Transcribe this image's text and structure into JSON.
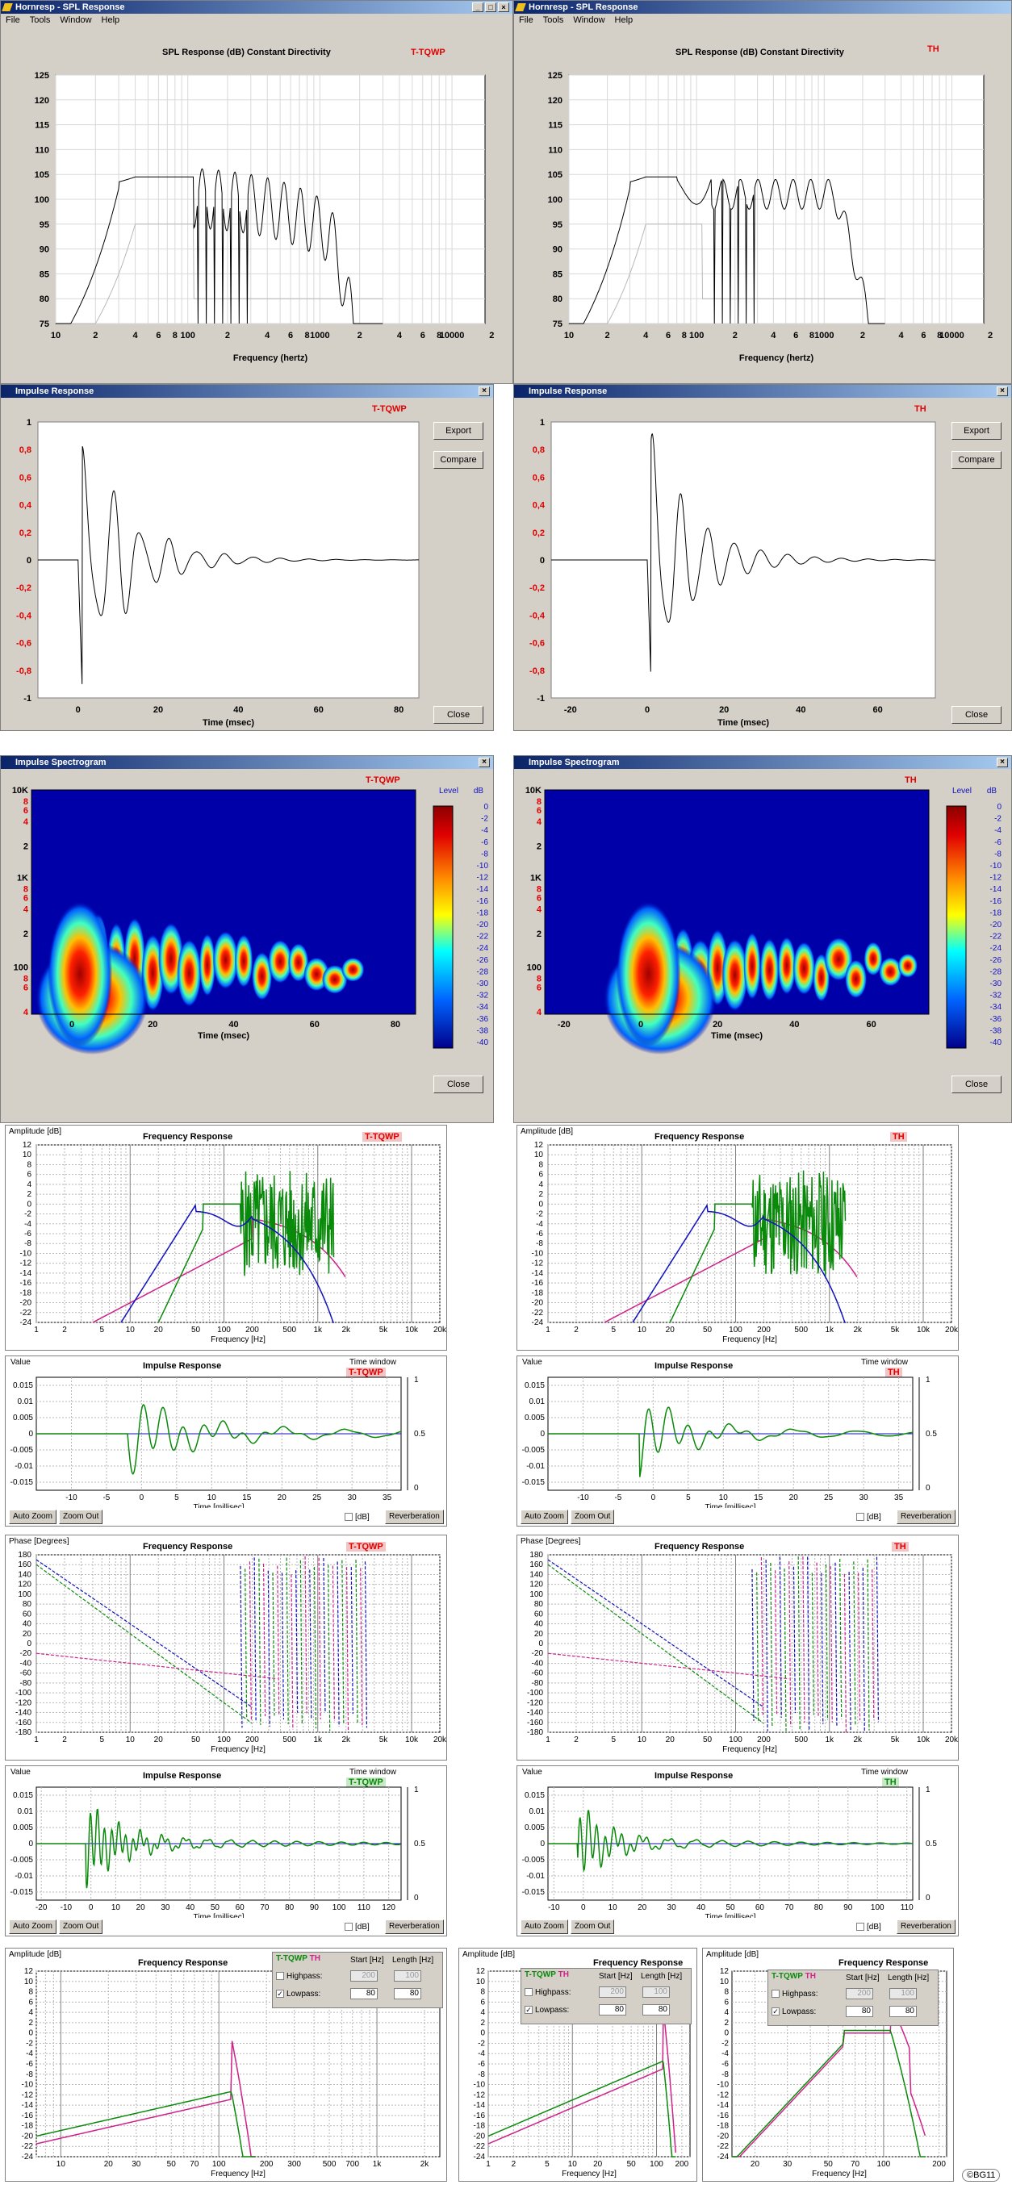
{
  "spl": [
    {
      "window_title": "Hornresp - SPL Response",
      "menu": [
        "File",
        "Tools",
        "Window",
        "Help"
      ],
      "title": "SPL Response (dB)   Constant Directivity",
      "tag": "T-TQWP",
      "yticks": [
        "125",
        "120",
        "115",
        "110",
        "105",
        "100",
        "95",
        "90",
        "85",
        "80",
        "75"
      ],
      "xticks": [
        "10",
        "2",
        "4",
        "6",
        "8",
        "100",
        "2",
        "4",
        "6",
        "8",
        "1000",
        "2",
        "4",
        "6",
        "8",
        "10000",
        "2"
      ],
      "xlabel": "Frequency (hertz)"
    },
    {
      "window_title": "Hornresp - SPL Response",
      "menu": [
        "File",
        "Tools",
        "Window",
        "Help"
      ],
      "title": "SPL Response (dB)   Constant Directivity",
      "tag": "TH",
      "yticks": [
        "125",
        "120",
        "115",
        "110",
        "105",
        "100",
        "95",
        "90",
        "85",
        "80",
        "75"
      ],
      "xticks": [
        "10",
        "2",
        "4",
        "6",
        "8",
        "100",
        "2",
        "4",
        "6",
        "8",
        "1000",
        "2",
        "4",
        "6",
        "8",
        "10000",
        "2"
      ],
      "xlabel": "Frequency (hertz)"
    }
  ],
  "impulse": [
    {
      "window_title": "Impulse Response",
      "tag": "T-TQWP",
      "yticks": [
        "1",
        "0,8",
        "0,6",
        "0,4",
        "0,2",
        "0",
        "-0,2",
        "-0,4",
        "-0,6",
        "-0,8",
        "-1"
      ],
      "xticks": [
        "0",
        "20",
        "40",
        "60",
        "80"
      ],
      "xlabel": "Time (msec)",
      "buttons": {
        "export": "Export",
        "compare": "Compare",
        "close": "Close"
      }
    },
    {
      "window_title": "Impulse Response",
      "tag": "TH",
      "yticks": [
        "1",
        "0,8",
        "0,6",
        "0,4",
        "0,2",
        "0",
        "-0,2",
        "-0,4",
        "-0,6",
        "-0,8",
        "-1"
      ],
      "xticks": [
        "-20",
        "0",
        "20",
        "40",
        "60"
      ],
      "xlabel": "Time (msec)",
      "buttons": {
        "export": "Export",
        "compare": "Compare",
        "close": "Close"
      }
    }
  ],
  "spectro": [
    {
      "window_title": "Impulse Spectrogram",
      "tag": "T-TQWP",
      "yticks": [
        "10K",
        "8",
        "6",
        "4",
        "2",
        "1K",
        "8",
        "6",
        "4",
        "2",
        "100",
        "8",
        "6",
        "4"
      ],
      "xticks": [
        "0",
        "20",
        "40",
        "60",
        "80"
      ],
      "xlabel": "Time (msec)",
      "level_label": "Level",
      "db_label": "dB",
      "scale": [
        "0",
        "-2",
        "-4",
        "-6",
        "-8",
        "-10",
        "-12",
        "-14",
        "-16",
        "-18",
        "-20",
        "-22",
        "-24",
        "-26",
        "-28",
        "-30",
        "-32",
        "-34",
        "-36",
        "-38",
        "-40"
      ],
      "close": "Close"
    },
    {
      "window_title": "Impulse Spectrogram",
      "tag": "TH",
      "yticks": [
        "10K",
        "8",
        "6",
        "4",
        "2",
        "1K",
        "8",
        "6",
        "4",
        "2",
        "100",
        "8",
        "6",
        "4"
      ],
      "xticks": [
        "-20",
        "0",
        "20",
        "40",
        "60"
      ],
      "xlabel": "Time (msec)",
      "level_label": "Level",
      "db_label": "dB",
      "scale": [
        "0",
        "-2",
        "-4",
        "-6",
        "-8",
        "-10",
        "-12",
        "-14",
        "-16",
        "-18",
        "-20",
        "-22",
        "-24",
        "-26",
        "-28",
        "-30",
        "-32",
        "-34",
        "-36",
        "-38",
        "-40"
      ],
      "close": "Close"
    }
  ],
  "fr": [
    {
      "ylabel": "Amplitude [dB]",
      "title": "Frequency Response",
      "tag": "T-TQWP",
      "yticks": [
        "12",
        "10",
        "8",
        "6",
        "4",
        "2",
        "0",
        "-2",
        "-4",
        "-6",
        "-8",
        "-10",
        "-12",
        "-14",
        "-16",
        "-18",
        "-20",
        "-22",
        "-24"
      ],
      "xticks": [
        "1",
        "2",
        "5",
        "10",
        "20",
        "50",
        "100",
        "200",
        "500",
        "1k",
        "2k",
        "5k",
        "10k",
        "20k"
      ],
      "xlabel": "Frequency [Hz]"
    },
    {
      "ylabel": "Amplitude [dB]",
      "title": "Frequency Response",
      "tag": "TH",
      "yticks": [
        "12",
        "10",
        "8",
        "6",
        "4",
        "2",
        "0",
        "-2",
        "-4",
        "-6",
        "-8",
        "-10",
        "-12",
        "-14",
        "-16",
        "-18",
        "-20",
        "-22",
        "-24"
      ],
      "xticks": [
        "1",
        "2",
        "5",
        "10",
        "20",
        "50",
        "100",
        "200",
        "500",
        "1k",
        "2k",
        "5k",
        "10k",
        "20k"
      ],
      "xlabel": "Frequency [Hz]"
    }
  ],
  "ir": [
    {
      "ylabel": "Value",
      "title": "Impulse Response",
      "tw": "Time window",
      "tag": "T-TQWP",
      "yticks": [
        "0.015",
        "0.01",
        "0.005",
        "0",
        "-0.005",
        "-0.01",
        "-0.015"
      ],
      "rticks": [
        "1",
        "0.5",
        "0"
      ],
      "xticks": [
        "-10",
        "-5",
        "0",
        "5",
        "10",
        "15",
        "20",
        "25",
        "30",
        "35"
      ],
      "xlabel": "Time [millisec]",
      "auto_zoom": "Auto Zoom",
      "zoom_out": "Zoom Out",
      "db": "[dB]",
      "reverb": "Reverberation"
    },
    {
      "ylabel": "Value",
      "title": "Impulse Response",
      "tw": "Time window",
      "tag": "TH",
      "yticks": [
        "0.015",
        "0.01",
        "0.005",
        "0",
        "-0.005",
        "-0.01",
        "-0.015"
      ],
      "rticks": [
        "1",
        "0.5",
        "0"
      ],
      "xticks": [
        "-10",
        "-5",
        "0",
        "5",
        "10",
        "15",
        "20",
        "25",
        "30",
        "35"
      ],
      "xlabel": "Time [millisec]",
      "auto_zoom": "Auto Zoom",
      "zoom_out": "Zoom Out",
      "db": "[dB]",
      "reverb": "Reverberation"
    }
  ],
  "ph": [
    {
      "ylabel": "Phase [Degrees]",
      "title": "Frequency Response",
      "tag": "T-TQWP",
      "yticks": [
        "180",
        "160",
        "140",
        "120",
        "100",
        "80",
        "60",
        "40",
        "20",
        "0",
        "-20",
        "-40",
        "-60",
        "-80",
        "-100",
        "-120",
        "-140",
        "-160",
        "-180"
      ],
      "xticks": [
        "1",
        "2",
        "5",
        "10",
        "20",
        "50",
        "100",
        "200",
        "500",
        "1k",
        "2k",
        "5k",
        "10k",
        "20k"
      ],
      "xlabel": "Frequency [Hz]"
    },
    {
      "ylabel": "Phase [Degrees]",
      "title": "Frequency Response",
      "tag": "TH",
      "yticks": [
        "180",
        "160",
        "140",
        "120",
        "100",
        "80",
        "60",
        "40",
        "20",
        "0",
        "-20",
        "-40",
        "-60",
        "-80",
        "-100",
        "-120",
        "-140",
        "-160",
        "-180"
      ],
      "xticks": [
        "1",
        "2",
        "5",
        "10",
        "20",
        "50",
        "100",
        "200",
        "500",
        "1k",
        "2k",
        "5k",
        "10k",
        "20k"
      ],
      "xlabel": "Frequency [Hz]"
    }
  ],
  "ir2": [
    {
      "ylabel": "Value",
      "title": "Impulse Response",
      "tw": "Time window",
      "tag": "T-TQWP",
      "yticks": [
        "0.015",
        "0.01",
        "0.005",
        "0",
        "-0.005",
        "-0.01",
        "-0.015"
      ],
      "rticks": [
        "1",
        "0.5",
        "0"
      ],
      "xticks": [
        "-20",
        "-10",
        "0",
        "10",
        "20",
        "30",
        "40",
        "50",
        "60",
        "70",
        "80",
        "90",
        "100",
        "110",
        "120"
      ],
      "xlabel": "Time [millisec]",
      "auto_zoom": "Auto Zoom",
      "zoom_out": "Zoom Out",
      "db": "[dB]",
      "reverb": "Reverberation"
    },
    {
      "ylabel": "Value",
      "title": "Impulse Response",
      "tw": "Time window",
      "tag": "TH",
      "yticks": [
        "0.015",
        "0.01",
        "0.005",
        "0",
        "-0.005",
        "-0.01",
        "-0.015"
      ],
      "rticks": [
        "1",
        "0.5",
        "0"
      ],
      "xticks": [
        "-10",
        "0",
        "10",
        "20",
        "30",
        "40",
        "50",
        "60",
        "70",
        "80",
        "90",
        "100",
        "110"
      ],
      "xlabel": "Time [millisec]",
      "auto_zoom": "Auto Zoom",
      "zoom_out": "Zoom Out",
      "db": "[dB]",
      "reverb": "Reverberation"
    }
  ],
  "bottom": [
    {
      "ylabel": "Amplitude [dB]",
      "title": "Frequency Response",
      "xticks": [
        "10",
        "20",
        "30",
        "50",
        "70",
        "100",
        "200",
        "300",
        "500",
        "700",
        "1k",
        "2k"
      ],
      "xlabel": "Frequency [Hz]"
    },
    {
      "ylabel": "Amplitude [dB]",
      "title": "Frequency Response",
      "xticks": [
        "1",
        "2",
        "5",
        "10",
        "20",
        "50",
        "100",
        "200"
      ],
      "xlabel": "Frequency [Hz]"
    },
    {
      "ylabel": "Amplitude [dB]",
      "title": "Frequency Response",
      "xticks": [
        "20",
        "30",
        "50",
        "70",
        "100",
        "200"
      ],
      "xlabel": "Frequency [Hz]"
    }
  ],
  "bottom_yticks": [
    "12",
    "10",
    "8",
    "6",
    "4",
    "2",
    "0",
    "-2",
    "-4",
    "-6",
    "-8",
    "-10",
    "-12",
    "-14",
    "-16",
    "-18",
    "-20",
    "-22",
    "-24"
  ],
  "filter": {
    "tag1": "T-TQWP",
    "tag2": "TH",
    "start_label": "Start [Hz]",
    "length_label": "Length [Hz]",
    "highpass": "Highpass:",
    "lowpass": "Lowpass:",
    "hp_start": "200",
    "hp_len": "100",
    "lp_start": "80",
    "lp_len": "80"
  },
  "signature": "©BG11",
  "colors": {
    "black": "#000000",
    "gray": "#b8b8b8",
    "blue": "#1010c0",
    "green": "#0a8a0a",
    "magenta": "#d0208a",
    "red": "#e00000"
  }
}
